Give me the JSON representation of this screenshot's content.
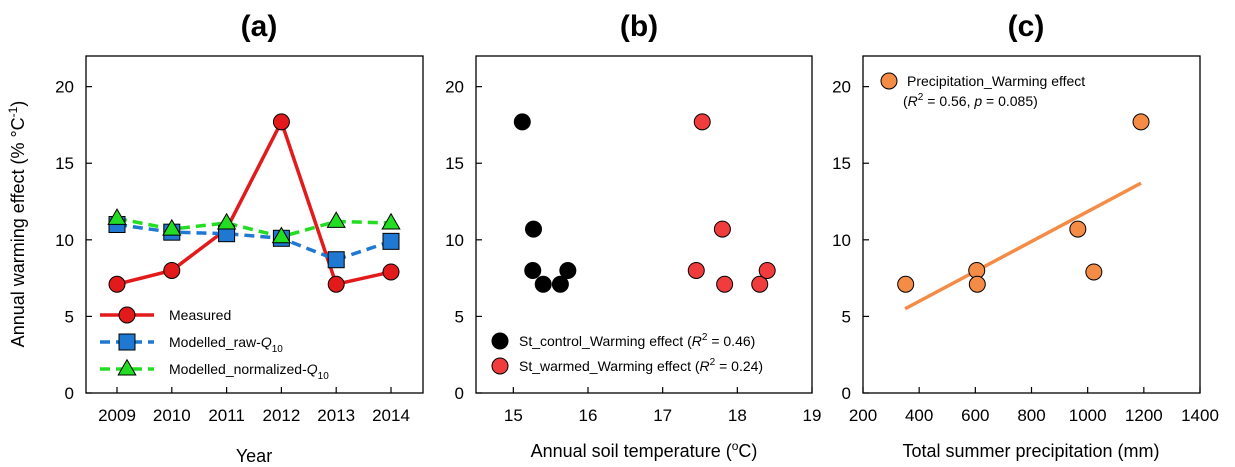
{
  "chart_data": [
    {
      "panel": "(a)",
      "type": "line",
      "title": "(a)",
      "xlabel": "Year",
      "ylabel": "Annual warming effect (% °C",
      "ylabel_sup": "-1",
      "ylabel_close": ")",
      "ylim": [
        0,
        22
      ],
      "yticks": [
        0,
        5,
        10,
        15,
        20
      ],
      "categories": [
        "2009",
        "2010",
        "2011",
        "2012",
        "2013",
        "2014"
      ],
      "series": [
        {
          "name": "Measured",
          "name_base": "Measured",
          "name_italic": "",
          "name_sub": "",
          "color": "#e31a1c",
          "marker": "circle",
          "dash": "solid",
          "values": [
            7.1,
            8.0,
            10.7,
            17.7,
            7.1,
            7.9
          ]
        },
        {
          "name": "Modelled_raw-Q10",
          "name_base": "Modelled_raw-",
          "name_italic": "Q",
          "name_sub": "10",
          "color": "#1f78d1",
          "marker": "square",
          "dash": "dashed",
          "values": [
            11.0,
            10.5,
            10.4,
            10.1,
            8.7,
            9.9
          ]
        },
        {
          "name": "Modelled_normalized-Q10",
          "name_base": "Modelled_normalized-",
          "name_italic": "Q",
          "name_sub": "10",
          "color": "#22dd22",
          "marker": "triangle",
          "dash": "dashed",
          "values": [
            11.4,
            10.7,
            11.1,
            10.2,
            11.2,
            11.1
          ]
        }
      ],
      "legend_position": "bottom-left",
      "grid": false
    },
    {
      "panel": "(b)",
      "type": "scatter",
      "title": "(b)",
      "xlabel": "Annual soil temperature (",
      "xlabel_sup": "o",
      "xlabel_close": "C)",
      "xlim": [
        14.5,
        19
      ],
      "xticks": [
        15,
        16,
        17,
        18,
        19
      ],
      "ylim": [
        0,
        22
      ],
      "yticks": [
        0,
        5,
        10,
        15,
        20
      ],
      "series": [
        {
          "name": "St_control_Warming effect (R2 = 0.46)",
          "label_base": "St_control_Warming effect (",
          "label_italic": "R",
          "label_sup": "2",
          "label_tail": " = 0.46)",
          "color": "#000000",
          "points": [
            [
              15.12,
              17.7
            ],
            [
              15.27,
              10.7
            ],
            [
              15.26,
              8.0
            ],
            [
              15.4,
              7.1
            ],
            [
              15.63,
              7.1
            ],
            [
              15.73,
              8.0
            ]
          ]
        },
        {
          "name": "St_warmed_Warming effect (R2 = 0.24)",
          "label_base": "St_warmed_Warming effect (",
          "label_italic": "R",
          "label_sup": "2",
          "label_tail": " = 0.24)",
          "color": "#f03c3c",
          "points": [
            [
              17.53,
              17.7
            ],
            [
              17.8,
              10.7
            ],
            [
              17.45,
              8.0
            ],
            [
              17.83,
              7.1
            ],
            [
              18.3,
              7.1
            ],
            [
              18.4,
              8.0
            ]
          ]
        }
      ],
      "legend_position": "bottom-left",
      "grid": false
    },
    {
      "panel": "(c)",
      "type": "scatter",
      "title": "(c)",
      "xlabel": "Total summer precipitation (mm)",
      "xlim": [
        200,
        1400
      ],
      "xticks": [
        200,
        400,
        600,
        800,
        1000,
        1200,
        1400
      ],
      "ylim": [
        0,
        22
      ],
      "yticks": [
        0,
        5,
        10,
        15,
        20
      ],
      "series": [
        {
          "name": "Precipitation_Warming effect",
          "color": "#f58c46",
          "points": [
            [
              352,
              7.1
            ],
            [
              605,
              8.0
            ],
            [
              607,
              7.1
            ],
            [
              965,
              10.7
            ],
            [
              1022,
              7.9
            ],
            [
              1190,
              17.7
            ]
          ]
        }
      ],
      "annotation": {
        "r_label": "R",
        "r_sup": "2",
        "r_mid": " = 0.56, ",
        "p_label": "p",
        "p_tail": " = 0.085)",
        "open": "("
      },
      "fit_line": {
        "color": "#f58c46",
        "x": [
          350,
          1190
        ],
        "y": [
          5.5,
          13.7
        ]
      },
      "legend_position": "top-left",
      "grid": false
    }
  ]
}
